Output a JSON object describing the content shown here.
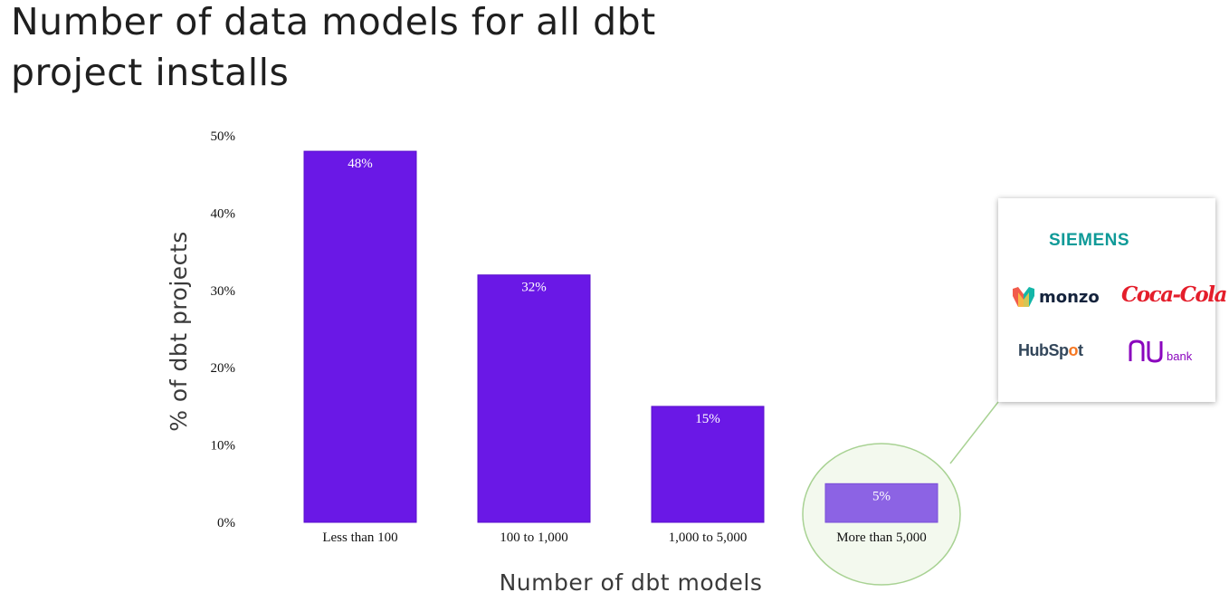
{
  "title": "Number of data models for all dbt project installs",
  "chart_data": {
    "type": "bar",
    "categories": [
      "Less than 100",
      "100 to 1,000",
      "1,000 to 5,000",
      "More than 5,000"
    ],
    "values": [
      48,
      32,
      15,
      5
    ],
    "data_labels": [
      "48%",
      "32%",
      "15%",
      "5%"
    ],
    "xlabel": "Number of dbt models",
    "ylabel": "% of dbt projects",
    "ylim": [
      0,
      50
    ],
    "y_ticks": [
      0,
      10,
      20,
      30,
      40,
      50
    ],
    "y_tick_labels": [
      "0%",
      "10%",
      "20%",
      "30%",
      "40%",
      "50%"
    ],
    "grid": false,
    "bar_color": "#6a18e6",
    "highlight_category": "More than 5,000",
    "highlight_bar_color": "#8c63e4",
    "highlight_circle_fill": "#f3f9ee",
    "highlight_circle_stroke": "#a8d293"
  },
  "callout": {
    "logos": [
      {
        "name": "siemens-logo",
        "text": "SIEMENS",
        "color": "#0f9a98"
      },
      {
        "name": "monzo-logo",
        "text": "monzo",
        "color": "#14233c"
      },
      {
        "name": "coca-cola-logo",
        "text": "Coca-Cola",
        "color": "#e41e2b"
      },
      {
        "name": "hubspot-logo",
        "text_prefix": "HubSp",
        "text_dot": "o",
        "text_suffix": "t",
        "color": "#33475b",
        "accent": "#f57722"
      },
      {
        "name": "nubank-logo",
        "text": "bank",
        "color": "#8a05be"
      }
    ]
  }
}
